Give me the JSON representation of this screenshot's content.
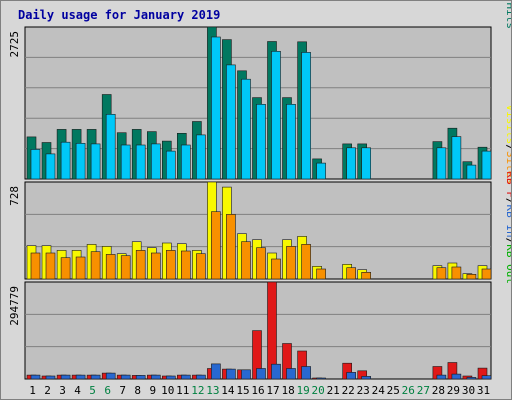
{
  "title": "Daily usage for January 2019",
  "colors": {
    "background": "#d7d7d7",
    "plot": "#c0c0c0",
    "grid": "#808080",
    "weekday": "#000000",
    "weekend": "#008040",
    "title": "#0000a0",
    "hits": "#007860",
    "files": "#00c8f8",
    "pages": "#00a8c8",
    "visits": "#f8f800",
    "sites": "#f89000",
    "kbout": "#00b000",
    "kbin": "#2868d0",
    "kbf": "#e01818"
  },
  "chart_data": [
    {
      "type": "bar",
      "panel": "top",
      "ymax_label": "2725",
      "ylim": [
        0,
        2725
      ],
      "legend": [
        {
          "text": "Pages",
          "color": "#00a8c8"
        },
        {
          "text": "/",
          "color": "#000000"
        },
        {
          "text": "Files",
          "color": "#2868d0"
        },
        {
          "text": "/",
          "color": "#000000"
        },
        {
          "text": "Hits",
          "color": "#007860"
        }
      ],
      "categories": [
        "1",
        "2",
        "3",
        "4",
        "5",
        "6",
        "7",
        "8",
        "9",
        "10",
        "11",
        "12",
        "13",
        "14",
        "15",
        "16",
        "17",
        "18",
        "19",
        "20",
        "21",
        "22",
        "23",
        "24",
        "25",
        "26",
        "27",
        "28",
        "29",
        "30",
        "31"
      ],
      "series": [
        {
          "name": "Hits",
          "color": "#007860",
          "values": [
            755,
            655,
            890,
            890,
            890,
            1515,
            830,
            890,
            850,
            680,
            820,
            1030,
            2725,
            2500,
            1940,
            1460,
            2465,
            1460,
            2460,
            360,
            0,
            630,
            630,
            0,
            0,
            0,
            0,
            670,
            910,
            310,
            570
          ]
        },
        {
          "name": "Files",
          "color": "#00c8f8",
          "values": [
            530,
            450,
            660,
            640,
            630,
            1160,
            610,
            610,
            630,
            500,
            610,
            790,
            2545,
            2045,
            1790,
            1340,
            2290,
            1340,
            2270,
            285,
            0,
            560,
            560,
            0,
            0,
            0,
            0,
            560,
            760,
            250,
            500
          ]
        },
        {
          "name": "Pages",
          "color": "#00a8c8",
          "values": [
            0,
            0,
            0,
            0,
            0,
            0,
            0,
            0,
            0,
            0,
            0,
            0,
            0,
            0,
            0,
            0,
            0,
            0,
            0,
            0,
            0,
            0,
            0,
            0,
            0,
            0,
            0,
            0,
            0,
            0,
            0
          ]
        }
      ]
    },
    {
      "type": "bar",
      "panel": "middle",
      "ymax_label": "728",
      "ylim": [
        0,
        728
      ],
      "legend": [
        {
          "text": "Visits",
          "color": "#f8f800"
        },
        {
          "text": "/",
          "color": "#000000"
        },
        {
          "text": "Sites",
          "color": "#f89000"
        }
      ],
      "categories": [
        "1",
        "2",
        "3",
        "4",
        "5",
        "6",
        "7",
        "8",
        "9",
        "10",
        "11",
        "12",
        "13",
        "14",
        "15",
        "16",
        "17",
        "18",
        "19",
        "20",
        "21",
        "22",
        "23",
        "24",
        "25",
        "26",
        "27",
        "28",
        "29",
        "30",
        "31"
      ],
      "series": [
        {
          "name": "Visits",
          "color": "#f8f800",
          "values": [
            250,
            250,
            215,
            215,
            260,
            245,
            190,
            280,
            235,
            270,
            265,
            215,
            728,
            690,
            340,
            295,
            195,
            295,
            320,
            95,
            0,
            110,
            70,
            0,
            0,
            0,
            0,
            100,
            120,
            40,
            100
          ]
        },
        {
          "name": "Sites",
          "color": "#f89000",
          "values": [
            195,
            195,
            160,
            165,
            205,
            185,
            175,
            215,
            195,
            215,
            210,
            190,
            505,
            485,
            280,
            235,
            150,
            245,
            260,
            75,
            0,
            85,
            50,
            0,
            0,
            0,
            0,
            85,
            90,
            35,
            75
          ]
        }
      ]
    },
    {
      "type": "bar",
      "panel": "bottom",
      "ymax_label": "294779",
      "ylim": [
        0,
        294779
      ],
      "legend": [
        {
          "text": "KB F",
          "color": "#e01818"
        },
        {
          "text": "/",
          "color": "#000000"
        },
        {
          "text": "KB In",
          "color": "#2868d0"
        },
        {
          "text": "/",
          "color": "#000000"
        },
        {
          "text": "KB Out",
          "color": "#00b000"
        }
      ],
      "categories": [
        "1",
        "2",
        "3",
        "4",
        "5",
        "6",
        "7",
        "8",
        "9",
        "10",
        "11",
        "12",
        "13",
        "14",
        "15",
        "16",
        "17",
        "18",
        "19",
        "20",
        "21",
        "22",
        "23",
        "24",
        "25",
        "26",
        "27",
        "28",
        "29",
        "30",
        "31"
      ],
      "series": [
        {
          "name": "KB F",
          "color": "#e01818",
          "values": [
            12000,
            9000,
            12000,
            12000,
            12000,
            18000,
            12000,
            11000,
            12000,
            9000,
            12000,
            12000,
            32000,
            30000,
            28000,
            147000,
            294779,
            108000,
            85000,
            3000,
            0,
            48000,
            25000,
            0,
            0,
            0,
            0,
            38000,
            50000,
            9000,
            33000
          ]
        },
        {
          "name": "KB In",
          "color": "#2868d0",
          "values": [
            12000,
            9000,
            12000,
            12000,
            12000,
            18000,
            12000,
            11000,
            12000,
            9000,
            12000,
            12000,
            46000,
            30000,
            28000,
            32000,
            45000,
            32000,
            38000,
            3000,
            0,
            20000,
            8000,
            0,
            0,
            0,
            0,
            12000,
            15000,
            5000,
            10000
          ]
        },
        {
          "name": "KB Out",
          "color": "#00b000",
          "values": [
            0,
            0,
            0,
            0,
            0,
            0,
            0,
            0,
            0,
            0,
            0,
            0,
            0,
            0,
            0,
            0,
            0,
            0,
            0,
            0,
            0,
            0,
            0,
            0,
            0,
            0,
            0,
            0,
            0,
            0,
            0
          ]
        }
      ]
    }
  ],
  "days": [
    {
      "label": "1",
      "weekend": false
    },
    {
      "label": "2",
      "weekend": false
    },
    {
      "label": "3",
      "weekend": false
    },
    {
      "label": "4",
      "weekend": false
    },
    {
      "label": "5",
      "weekend": true
    },
    {
      "label": "6",
      "weekend": true
    },
    {
      "label": "7",
      "weekend": false
    },
    {
      "label": "8",
      "weekend": false
    },
    {
      "label": "9",
      "weekend": false
    },
    {
      "label": "10",
      "weekend": false
    },
    {
      "label": "11",
      "weekend": false
    },
    {
      "label": "12",
      "weekend": true
    },
    {
      "label": "13",
      "weekend": true
    },
    {
      "label": "14",
      "weekend": false
    },
    {
      "label": "15",
      "weekend": false
    },
    {
      "label": "16",
      "weekend": false
    },
    {
      "label": "17",
      "weekend": false
    },
    {
      "label": "18",
      "weekend": false
    },
    {
      "label": "19",
      "weekend": true
    },
    {
      "label": "20",
      "weekend": true
    },
    {
      "label": "21",
      "weekend": false
    },
    {
      "label": "22",
      "weekend": false
    },
    {
      "label": "23",
      "weekend": false
    },
    {
      "label": "24",
      "weekend": false
    },
    {
      "label": "25",
      "weekend": false
    },
    {
      "label": "26",
      "weekend": true
    },
    {
      "label": "27",
      "weekend": true
    },
    {
      "label": "28",
      "weekend": false
    },
    {
      "label": "29",
      "weekend": false
    },
    {
      "label": "30",
      "weekend": false
    },
    {
      "label": "31",
      "weekend": false
    }
  ]
}
